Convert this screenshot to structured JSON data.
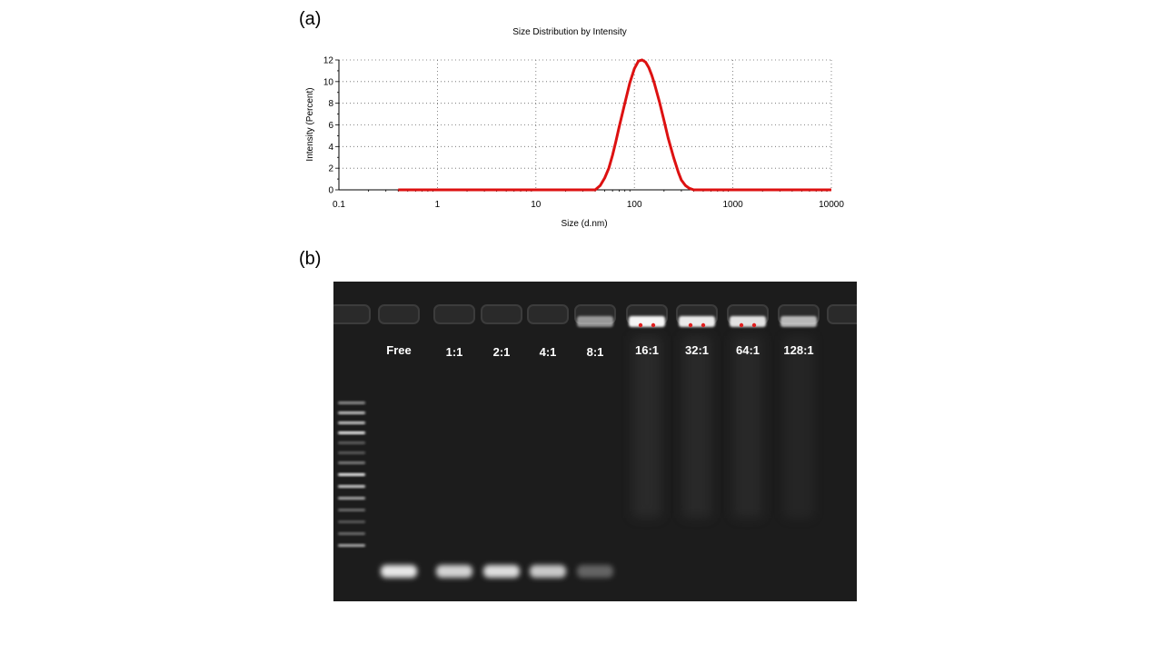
{
  "panels": {
    "a": "(a)",
    "b": "(b)"
  },
  "chart_data": {
    "type": "line",
    "title": "Size Distribution by Intensity",
    "xlabel": "Size (d.nm)",
    "ylabel": "Intensity (Percent)",
    "x_scale": "log",
    "xlim": [
      0.1,
      10000
    ],
    "ylim": [
      0,
      12
    ],
    "x_ticks": [
      "0.1",
      "1",
      "10",
      "100",
      "1000",
      "10000"
    ],
    "y_ticks": [
      "0",
      "2",
      "4",
      "6",
      "8",
      "10",
      "12"
    ],
    "grid": true,
    "legend": "none",
    "series": [
      {
        "color": "#dd1111",
        "x": [
          0.4,
          1,
          10,
          30,
          40,
          45,
          50,
          55,
          60,
          65,
          70,
          80,
          90,
          100,
          110,
          120,
          130,
          140,
          150,
          160,
          180,
          200,
          220,
          250,
          280,
          300,
          330,
          360,
          400,
          450,
          1000,
          10000
        ],
        "y": [
          0,
          0,
          0,
          0,
          0,
          0.4,
          1.1,
          2.0,
          3.2,
          4.5,
          5.8,
          8.0,
          9.9,
          11.2,
          11.9,
          12.0,
          11.8,
          11.3,
          10.6,
          9.8,
          8.1,
          6.4,
          4.8,
          3.0,
          1.6,
          0.9,
          0.4,
          0.15,
          0,
          0,
          0,
          0
        ]
      }
    ]
  },
  "gel": {
    "lane_labels": [
      "Free",
      "1:1",
      "2:1",
      "4:1",
      "8:1",
      "16:1",
      "32:1",
      "64:1",
      "128:1"
    ],
    "background": "#1c1c1c",
    "ladder_bands": 14,
    "migrated_band_intensity": [
      1.0,
      0.9,
      0.95,
      0.85,
      0.35,
      0,
      0,
      0,
      0
    ],
    "well_retained_intensity": [
      0,
      0,
      0,
      0,
      0.55,
      1.0,
      0.95,
      0.9,
      0.7
    ]
  }
}
